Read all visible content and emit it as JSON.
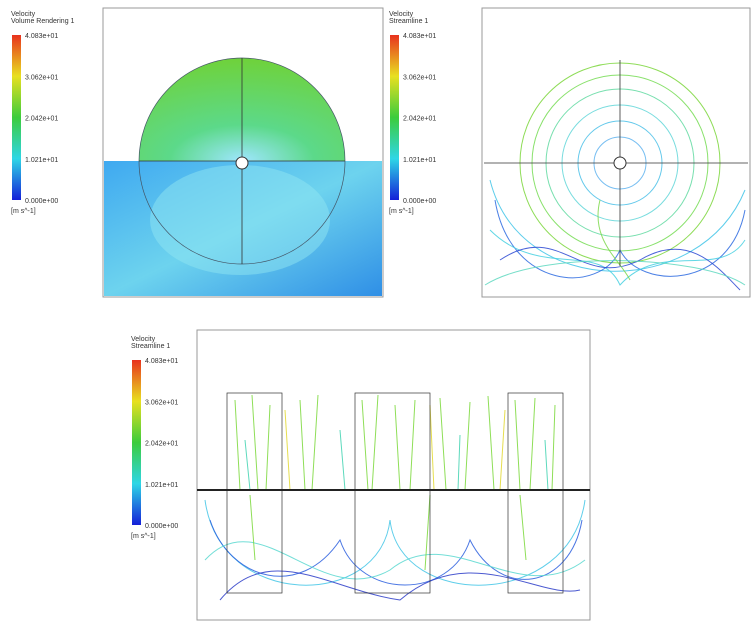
{
  "panels": [
    {
      "legend": {
        "title": "Velocity",
        "subtitle": "Volume Rendering 1",
        "labels": [
          "4.083e+01",
          "3.062e+01",
          "2.042e+01",
          "1.021e+01",
          "0.000e+00"
        ],
        "unit": "[m s^-1]"
      }
    },
    {
      "legend": {
        "title": "Velocity",
        "subtitle": "Streamline 1",
        "labels": [
          "4.083e+01",
          "3.062e+01",
          "2.042e+01",
          "1.021e+01",
          "0.000e+00"
        ],
        "unit": "[m s^-1]"
      }
    },
    {
      "legend": {
        "title": "Velocity",
        "subtitle": "Streamline 1",
        "labels": [
          "4.083e+01",
          "3.062e+01",
          "2.042e+01",
          "1.021e+01",
          "0.000e+00"
        ],
        "unit": "[m s^-1]"
      }
    }
  ]
}
